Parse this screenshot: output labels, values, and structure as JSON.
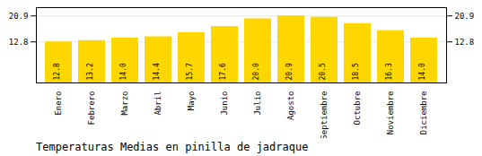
{
  "chart_data": {
    "type": "bar",
    "title": "Temperaturas Medias en pinilla de jadraque",
    "categories": [
      "Enero",
      "Febrero",
      "Marzo",
      "Abril",
      "Mayo",
      "Junio",
      "Julio",
      "Agosto",
      "Septiembre",
      "Octubre",
      "Noviembre",
      "Diciembre"
    ],
    "values": [
      12.8,
      13.2,
      14.0,
      14.4,
      15.7,
      17.6,
      20.0,
      20.9,
      20.5,
      18.5,
      16.3,
      14.0
    ],
    "value_labels": [
      "12.8",
      "13.2",
      "14.0",
      "14.4",
      "15.7",
      "17.6",
      "20.0",
      "20.9",
      "20.5",
      "18.5",
      "16.3",
      "14.0"
    ],
    "color": "#FFD700",
    "ylim": [
      0,
      23.5
    ],
    "yticks": [
      12.8,
      20.9
    ],
    "grid": true,
    "data_labels": true
  }
}
